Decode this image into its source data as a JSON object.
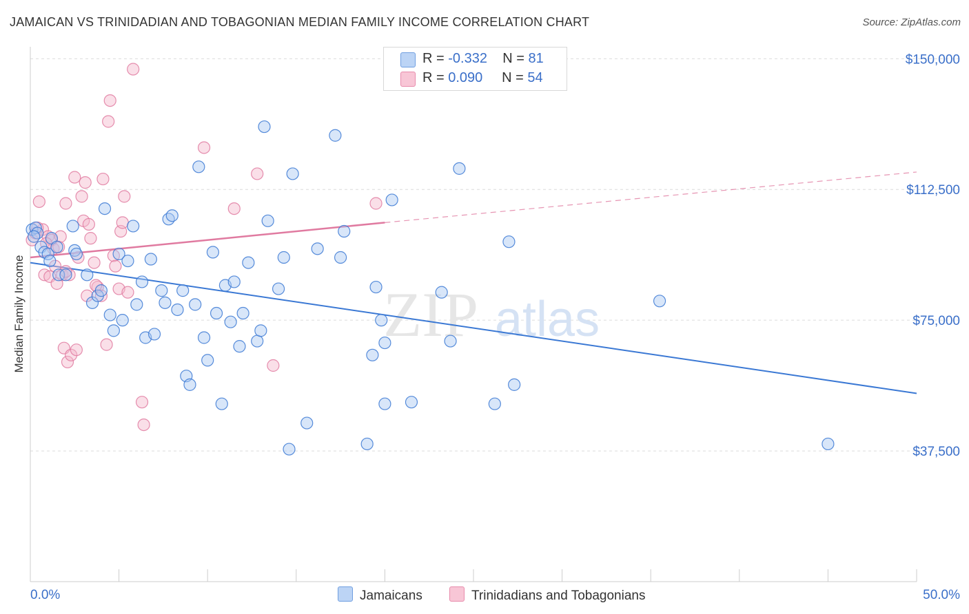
{
  "title": "JAMAICAN VS TRINIDADIAN AND TOBAGONIAN MEDIAN FAMILY INCOME CORRELATION CHART",
  "source": "Source: ZipAtlas.com",
  "watermark": {
    "zip": "ZIP",
    "atlas": "atlas"
  },
  "legend_top": [
    {
      "r_label": "R = ",
      "r_value": "-0.332",
      "n_label": "N = ",
      "n_value": "81"
    },
    {
      "r_label": "R = ",
      "r_value": "0.090",
      "n_label": "N = ",
      "n_value": "54"
    }
  ],
  "legend_bottom": [
    "Jamaicans",
    "Trinidadians and Tobagonians"
  ],
  "colors": {
    "blue": "#3a78d4",
    "blue_fill": "#a9c8f1",
    "pink": "#e07aa0",
    "pink_fill": "#f5b9cc",
    "axis_label": "#3a6fc9",
    "grid": "#dcdcdc"
  },
  "chart_data": {
    "type": "scatter",
    "title": "JAMAICAN VS TRINIDADIAN AND TOBAGONIAN MEDIAN FAMILY INCOME CORRELATION CHART",
    "xlabel": "",
    "ylabel": "Median Family Income",
    "xlim": [
      0,
      50
    ],
    "ylim": [
      0,
      155000
    ],
    "x_tick_labels": [
      "0.0%",
      "50.0%"
    ],
    "y_ticks": [
      37500,
      75000,
      112500,
      150000
    ],
    "y_tick_labels": [
      "$37,500",
      "$75,000",
      "$112,500",
      "$150,000"
    ],
    "grid": true,
    "series": [
      {
        "name": "Jamaicans",
        "color": "#3a78d4",
        "points": [
          [
            0.1,
            101000
          ],
          [
            0.3,
            101500
          ],
          [
            0.4,
            100000
          ],
          [
            0.6,
            96000
          ],
          [
            0.8,
            94500
          ],
          [
            1.0,
            94000
          ],
          [
            1.1,
            92000
          ],
          [
            1.2,
            98500
          ],
          [
            1.5,
            96000
          ],
          [
            1.6,
            88000
          ],
          [
            2.0,
            88000
          ],
          [
            2.5,
            95000
          ],
          [
            2.6,
            94000
          ],
          [
            2.4,
            102000
          ],
          [
            3.2,
            88000
          ],
          [
            3.5,
            80000
          ],
          [
            3.8,
            82000
          ],
          [
            4.0,
            83500
          ],
          [
            4.2,
            107000
          ],
          [
            4.5,
            76500
          ],
          [
            4.7,
            72000
          ],
          [
            5.0,
            94000
          ],
          [
            5.2,
            75000
          ],
          [
            5.5,
            92000
          ],
          [
            5.8,
            102000
          ],
          [
            6.0,
            79500
          ],
          [
            6.3,
            86000
          ],
          [
            6.5,
            70000
          ],
          [
            6.8,
            92500
          ],
          [
            7.0,
            71000
          ],
          [
            7.4,
            83500
          ],
          [
            7.6,
            80000
          ],
          [
            7.8,
            104000
          ],
          [
            8.0,
            105000
          ],
          [
            8.3,
            78000
          ],
          [
            8.6,
            83500
          ],
          [
            8.8,
            59000
          ],
          [
            9.0,
            56500
          ],
          [
            9.3,
            79500
          ],
          [
            9.5,
            119000
          ],
          [
            9.8,
            70000
          ],
          [
            10.0,
            63500
          ],
          [
            10.3,
            94500
          ],
          [
            10.5,
            77000
          ],
          [
            10.8,
            51000
          ],
          [
            11.0,
            85000
          ],
          [
            11.3,
            74500
          ],
          [
            11.5,
            86000
          ],
          [
            11.8,
            67500
          ],
          [
            12.0,
            77000
          ],
          [
            12.3,
            91500
          ],
          [
            12.8,
            69000
          ],
          [
            13.0,
            72000
          ],
          [
            13.2,
            130500
          ],
          [
            13.4,
            103500
          ],
          [
            14.0,
            84000
          ],
          [
            14.3,
            93000
          ],
          [
            14.6,
            38000
          ],
          [
            14.8,
            117000
          ],
          [
            15.6,
            45500
          ],
          [
            16.2,
            95500
          ],
          [
            17.2,
            128000
          ],
          [
            17.5,
            93000
          ],
          [
            17.7,
            100500
          ],
          [
            19.0,
            39500
          ],
          [
            19.3,
            65000
          ],
          [
            19.5,
            84500
          ],
          [
            19.8,
            75000
          ],
          [
            20.0,
            68500
          ],
          [
            20.4,
            109500
          ],
          [
            21.5,
            51500
          ],
          [
            23.2,
            83000
          ],
          [
            20.0,
            51000
          ],
          [
            23.7,
            69000
          ],
          [
            24.2,
            118500
          ],
          [
            26.2,
            51000
          ],
          [
            27.0,
            97500
          ],
          [
            27.3,
            56500
          ],
          [
            35.5,
            80500
          ],
          [
            45.0,
            39500
          ],
          [
            0.2,
            99000
          ]
        ],
        "trend": {
          "x": [
            0,
            50
          ],
          "y": [
            91500,
            54000
          ]
        }
      },
      {
        "name": "Trinidadians and Tobagonians",
        "color": "#e07aa0",
        "points": [
          [
            0.1,
            98000
          ],
          [
            0.3,
            100000
          ],
          [
            0.5,
            109000
          ],
          [
            0.7,
            101000
          ],
          [
            0.8,
            88000
          ],
          [
            1.0,
            99000
          ],
          [
            1.1,
            87500
          ],
          [
            1.2,
            98000
          ],
          [
            1.3,
            95500
          ],
          [
            1.4,
            90500
          ],
          [
            1.5,
            85500
          ],
          [
            1.6,
            96000
          ],
          [
            1.8,
            88000
          ],
          [
            1.9,
            67000
          ],
          [
            2.0,
            108500
          ],
          [
            2.1,
            63000
          ],
          [
            2.2,
            88000
          ],
          [
            2.3,
            65000
          ],
          [
            2.5,
            116000
          ],
          [
            2.6,
            66500
          ],
          [
            2.7,
            93000
          ],
          [
            2.9,
            110500
          ],
          [
            3.0,
            103500
          ],
          [
            3.1,
            114500
          ],
          [
            3.2,
            82000
          ],
          [
            3.3,
            102500
          ],
          [
            3.4,
            98500
          ],
          [
            3.6,
            91500
          ],
          [
            3.8,
            84500
          ],
          [
            4.0,
            82000
          ],
          [
            4.1,
            115500
          ],
          [
            4.3,
            68000
          ],
          [
            4.4,
            132000
          ],
          [
            4.5,
            138000
          ],
          [
            4.7,
            93500
          ],
          [
            4.8,
            90500
          ],
          [
            5.0,
            84000
          ],
          [
            5.1,
            100500
          ],
          [
            5.2,
            103000
          ],
          [
            5.3,
            110500
          ],
          [
            5.5,
            83000
          ],
          [
            5.8,
            147000
          ],
          [
            6.3,
            51500
          ],
          [
            6.4,
            45000
          ],
          [
            9.8,
            124500
          ],
          [
            11.5,
            107000
          ],
          [
            12.8,
            117000
          ],
          [
            13.7,
            62000
          ],
          [
            19.5,
            108500
          ],
          [
            1.7,
            99000
          ],
          [
            2.0,
            89000
          ],
          [
            0.9,
            97000
          ],
          [
            3.7,
            85000
          ],
          [
            0.4,
            101500
          ]
        ],
        "trend": {
          "x": [
            0,
            20
          ],
          "y": [
            93000,
            103000
          ]
        },
        "trend_extension": {
          "x": [
            20,
            50
          ],
          "y": [
            103000,
            117500
          ]
        }
      }
    ]
  }
}
